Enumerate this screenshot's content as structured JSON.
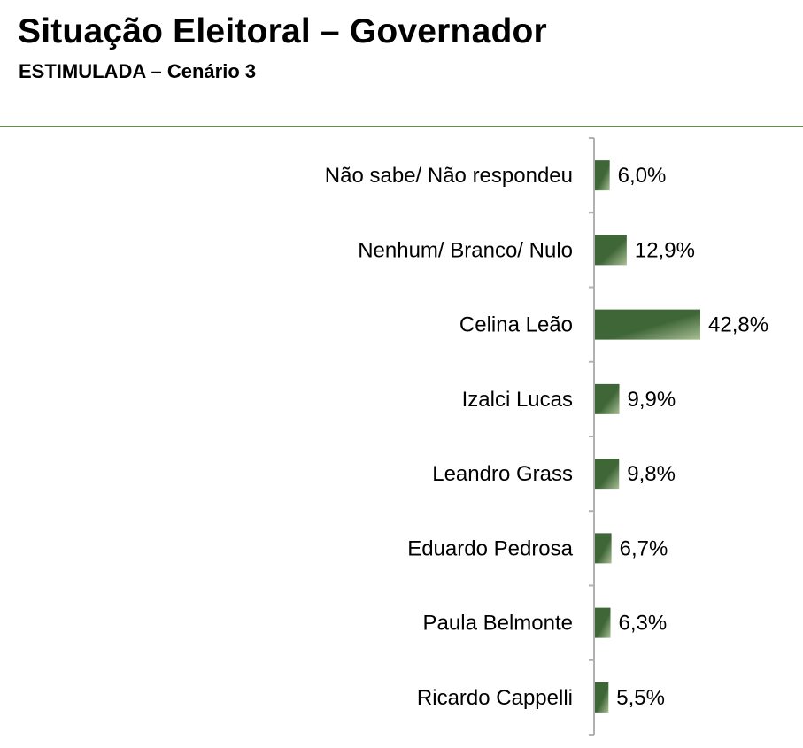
{
  "header": {
    "title": "Situação Eleitoral – Governador",
    "subtitle": "ESTIMULADA – Cenário 3"
  },
  "colors": {
    "bar_dark": "#3f6637",
    "bar_light": "#a9bf94",
    "axis": "#b0b0b0",
    "rule": "#6f8a58"
  },
  "chart_data": {
    "type": "bar",
    "orientation": "horizontal",
    "categories": [
      "Não sabe/ Não respondeu",
      "Nenhum/ Branco/ Nulo",
      "Celina Leão",
      "Izalci Lucas",
      "Leandro Grass",
      "Eduardo Pedrosa",
      "Paula Belmonte",
      "Ricardo Cappelli"
    ],
    "values": [
      6.0,
      12.9,
      42.8,
      9.9,
      9.8,
      6.7,
      6.3,
      5.5
    ],
    "value_labels": [
      "6,0%",
      "12,9%",
      "42,8%",
      "9,9%",
      "9,8%",
      "6,7%",
      "6,3%",
      "5,5%"
    ],
    "unit": "%",
    "xlim": [
      0,
      45
    ],
    "grid": false,
    "legend": "none"
  }
}
